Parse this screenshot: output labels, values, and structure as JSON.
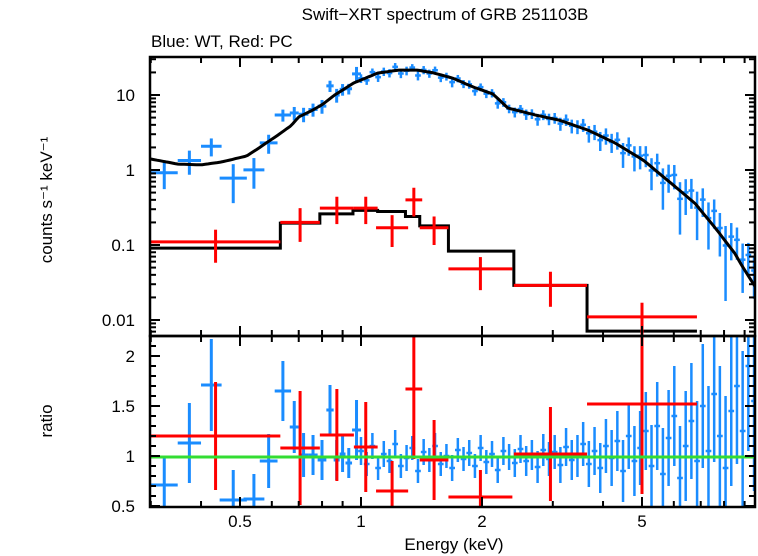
{
  "chart_data": {
    "type": "scatter",
    "title": "Swift−XRT spectrum of GRB 251103B",
    "subtitle": "Blue: WT, Red: PC",
    "xlabel": "Energy (keV)",
    "xscale": "log",
    "xlim": [
      0.3,
      9.6
    ],
    "xticks": [
      0.5,
      1,
      2,
      5
    ],
    "xtick_labels": [
      "0.5",
      "1",
      "2",
      "5"
    ],
    "panels": [
      {
        "name": "spectrum",
        "ylabel": "counts s⁻¹ keV⁻¹",
        "yscale": "log",
        "ylim": [
          0.0061,
          32
        ],
        "yticks": [
          10,
          1,
          0.1,
          0.01
        ],
        "ytick_labels": [
          "10",
          "1",
          "0.1",
          "0.01"
        ]
      },
      {
        "name": "ratio",
        "ylabel": "ratio",
        "yscale": "linear",
        "ylim": [
          0.49,
          2.2
        ],
        "yticks": [
          2,
          1.5,
          1,
          0.5
        ],
        "ytick_labels": [
          "2",
          "1.5",
          "1",
          "0.5"
        ],
        "reference_line": 1
      }
    ],
    "colors": {
      "wt": "#1a8cff",
      "pc": "#ff0000",
      "model": "#000000",
      "unity": "#33dd33"
    },
    "wt": {
      "name": "WT",
      "model": [
        [
          0.3,
          1.4
        ],
        [
          0.35,
          1.2
        ],
        [
          0.4,
          1.17
        ],
        [
          0.45,
          1.28
        ],
        [
          0.52,
          1.54
        ],
        [
          0.56,
          2.0
        ],
        [
          0.62,
          2.9
        ],
        [
          0.67,
          3.9
        ],
        [
          0.7,
          5.1
        ],
        [
          0.75,
          6.1
        ],
        [
          0.8,
          7.4
        ],
        [
          0.86,
          10
        ],
        [
          0.96,
          14.5
        ],
        [
          1.1,
          19.6
        ],
        [
          1.24,
          21.5
        ],
        [
          1.38,
          21.5
        ],
        [
          1.51,
          19.8
        ],
        [
          1.69,
          16.8
        ],
        [
          1.9,
          12.8
        ],
        [
          2.13,
          10.3
        ],
        [
          2.32,
          6.7
        ],
        [
          2.72,
          5.4
        ],
        [
          3.12,
          4.6
        ],
        [
          3.67,
          3.4
        ],
        [
          4.28,
          2.3
        ],
        [
          5.03,
          1.36
        ],
        [
          5.9,
          0.67
        ],
        [
          6.77,
          0.36
        ],
        [
          7.6,
          0.17
        ],
        [
          8.5,
          0.078
        ],
        [
          8.9,
          0.051
        ],
        [
          9.6,
          0.027
        ]
      ],
      "low_energy_points": [
        {
          "e": 0.325,
          "e_lo": 0.3,
          "e_hi": 0.35,
          "ratio": 0.71,
          "ratio_err": 0.28
        },
        {
          "e": 0.375,
          "e_lo": 0.35,
          "e_hi": 0.4,
          "ratio": 1.13,
          "ratio_err": 0.4
        },
        {
          "e": 0.42,
          "e_lo": 0.4,
          "e_hi": 0.45,
          "ratio": 1.71,
          "ratio_err": 0.46
        },
        {
          "e": 0.48,
          "e_lo": 0.445,
          "e_hi": 0.52,
          "ratio": 0.56,
          "ratio_err": 0.3
        },
        {
          "e": 0.54,
          "e_lo": 0.51,
          "e_hi": 0.575,
          "ratio": 0.57,
          "ratio_err": 0.25
        },
        {
          "e": 0.59,
          "e_lo": 0.56,
          "e_hi": 0.62,
          "ratio": 0.95,
          "ratio_err": 0.27
        },
        {
          "e": 0.64,
          "e_lo": 0.61,
          "e_hi": 0.67,
          "ratio": 1.65,
          "ratio_err": 0.3
        },
        {
          "e": 0.685,
          "e_lo": 0.665,
          "e_hi": 0.7,
          "ratio": 1.29,
          "ratio_err": 0.26
        },
        {
          "e": 0.72,
          "e_lo": 0.7,
          "e_hi": 0.74,
          "ratio": 1.01,
          "ratio_err": 0.22
        },
        {
          "e": 0.76,
          "e_lo": 0.74,
          "e_hi": 0.78,
          "ratio": 1.01,
          "ratio_err": 0.2
        },
        {
          "e": 0.8,
          "e_lo": 0.78,
          "e_hi": 0.82,
          "ratio": 0.96,
          "ratio_err": 0.2
        },
        {
          "e": 0.84,
          "e_lo": 0.82,
          "e_hi": 0.855,
          "ratio": 1.46,
          "ratio_err": 0.25
        },
        {
          "e": 0.87,
          "e_lo": 0.855,
          "e_hi": 0.885,
          "ratio": 0.96,
          "ratio_err": 0.2
        },
        {
          "e": 0.9,
          "e_lo": 0.885,
          "e_hi": 0.915,
          "ratio": 1.02,
          "ratio_err": 0.18
        },
        {
          "e": 0.93,
          "e_lo": 0.915,
          "e_hi": 0.95,
          "ratio": 0.93,
          "ratio_err": 0.15
        },
        {
          "e": 0.98,
          "e_lo": 0.95,
          "e_hi": 1.0,
          "ratio": 1.26,
          "ratio_err": 0.3
        }
      ],
      "dense_points": {
        "log_e_start": 0.0,
        "log_e_step": 0.01417,
        "ratio": [
          1.05,
          0.92,
          1.1,
          0.88,
          1.02,
          0.95,
          1.12,
          0.9,
          0.98,
          1.08,
          0.85,
          1.04,
          0.96,
          1.1,
          0.92,
          1.0,
          0.88,
          1.06,
          0.97,
          1.03,
          0.9,
          1.08,
          0.94,
          1.02,
          0.86,
          1.05,
          0.99,
          0.93,
          1.07,
          0.95,
          1.01,
          0.89,
          1.06,
          0.97,
          1.04,
          0.91,
          1.09,
          0.96,
          1.0,
          1.12,
          0.92,
          1.05,
          0.88,
          1.1,
          0.98,
          1.15,
          0.85,
          1.2,
          0.95,
          1.08,
          1.25,
          0.9,
          1.3,
          0.82,
          1.18,
          1.4,
          0.78,
          1.1,
          1.35,
          0.95,
          1.5,
          1.05,
          1.62,
          1.2,
          0.88,
          1.45,
          1.7,
          1.25,
          1.9,
          1.55
        ],
        "ratio_err": [
          0.14,
          0.12,
          0.13,
          0.12,
          0.13,
          0.12,
          0.14,
          0.12,
          0.13,
          0.12,
          0.12,
          0.13,
          0.12,
          0.13,
          0.12,
          0.12,
          0.13,
          0.12,
          0.12,
          0.13,
          0.12,
          0.13,
          0.12,
          0.13,
          0.13,
          0.14,
          0.13,
          0.14,
          0.14,
          0.15,
          0.15,
          0.16,
          0.16,
          0.17,
          0.17,
          0.18,
          0.19,
          0.2,
          0.21,
          0.22,
          0.23,
          0.24,
          0.25,
          0.27,
          0.28,
          0.3,
          0.31,
          0.33,
          0.35,
          0.37,
          0.39,
          0.41,
          0.44,
          0.46,
          0.48,
          0.5,
          0.52,
          0.55,
          0.58,
          0.6,
          0.62,
          0.65,
          0.68,
          0.7,
          0.72,
          0.75,
          0.78,
          0.8,
          0.85,
          0.9
        ]
      }
    },
    "pc": {
      "name": "PC",
      "model_edges": [
        0.3,
        0.63,
        0.79,
        0.955,
        1.1,
        1.29,
        1.4,
        1.65,
        2.4,
        3.65,
        6.85
      ],
      "model_values": [
        0.091,
        0.196,
        0.26,
        0.29,
        0.28,
        0.24,
        0.18,
        0.083,
        0.029,
        0.0071
      ],
      "points": [
        {
          "e": 0.46,
          "e_lo": 0.3,
          "e_hi": 0.63,
          "value": 0.11,
          "err": [
            0.058,
            0.16
          ],
          "ratio": 1.2,
          "ratio_err": 0.54
        },
        {
          "e": 0.71,
          "e_lo": 0.63,
          "e_hi": 0.79,
          "value": 0.2,
          "err": [
            0.11,
            0.31
          ],
          "ratio": 1.08,
          "ratio_err": 0.57
        },
        {
          "e": 0.87,
          "e_lo": 0.79,
          "e_hi": 0.96,
          "value": 0.31,
          "err": [
            0.19,
            0.44
          ],
          "ratio": 1.21,
          "ratio_err": 0.46
        },
        {
          "e": 1.02,
          "e_lo": 0.96,
          "e_hi": 1.1,
          "value": 0.31,
          "err": [
            0.19,
            0.44
          ],
          "ratio": 1.09,
          "ratio_err": 0.45
        },
        {
          "e": 1.19,
          "e_lo": 1.09,
          "e_hi": 1.31,
          "value": 0.17,
          "err": [
            0.094,
            0.25
          ],
          "ratio": 0.65,
          "ratio_err": 0.3
        },
        {
          "e": 1.35,
          "e_lo": 1.29,
          "e_hi": 1.42,
          "value": 0.4,
          "err": [
            0.24,
            0.58
          ],
          "ratio": 1.67,
          "ratio_err": 0.7
        },
        {
          "e": 1.54,
          "e_lo": 1.4,
          "e_hi": 1.65,
          "value": 0.17,
          "err": [
            0.1,
            0.24
          ],
          "ratio": 0.96,
          "ratio_err": 0.4
        },
        {
          "e": 2.03,
          "e_lo": 1.65,
          "e_hi": 2.38,
          "value": 0.048,
          "err": [
            0.025,
            0.069
          ],
          "ratio": 0.59,
          "ratio_err": 0.27
        },
        {
          "e": 3.0,
          "e_lo": 2.4,
          "e_hi": 3.65,
          "value": 0.029,
          "err": [
            0.015,
            0.044
          ],
          "ratio": 1.02,
          "ratio_err": 0.47
        },
        {
          "e": 5.2,
          "e_lo": 3.65,
          "e_hi": 6.85,
          "value": 0.011,
          "err": [
            0.006,
            0.017
          ],
          "ratio": 1.52,
          "ratio_err": 0.9
        }
      ]
    }
  }
}
